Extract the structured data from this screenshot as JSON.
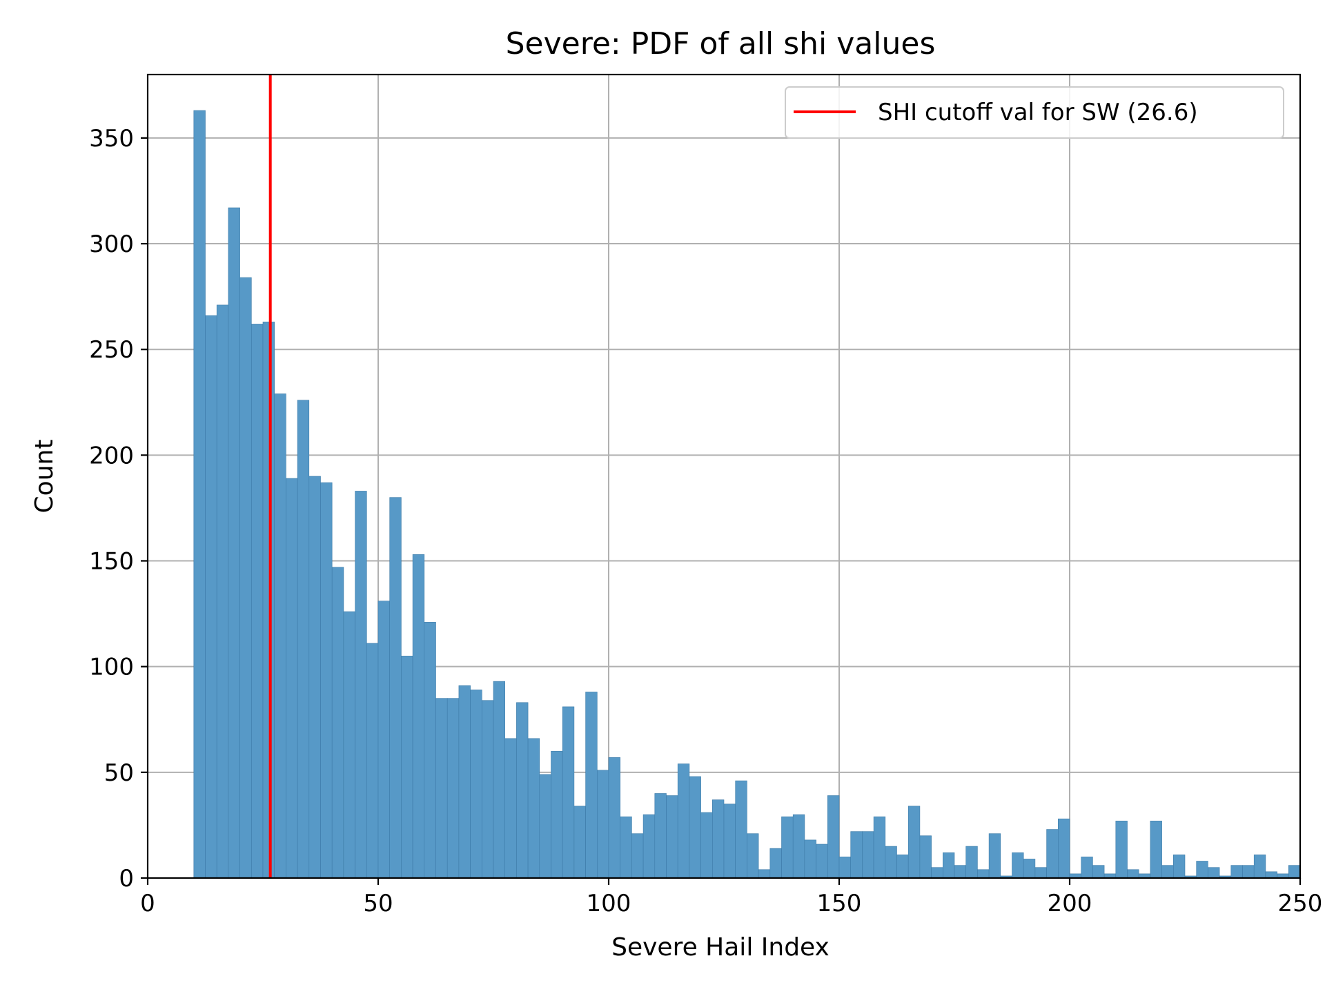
{
  "chart_data": {
    "type": "bar",
    "title": "Severe: PDF of all shi values",
    "xlabel": "Severe Hail Index",
    "ylabel": "Count",
    "xlim": [
      0,
      250
    ],
    "ylim": [
      0,
      380
    ],
    "xticks": [
      0,
      50,
      100,
      150,
      200,
      250
    ],
    "yticks": [
      0,
      50,
      100,
      150,
      200,
      250,
      300,
      350
    ],
    "grid": true,
    "bar_color": "#5799c7",
    "bins_start": 10,
    "bin_width": 2.5,
    "values": [
      363,
      266,
      271,
      317,
      284,
      262,
      263,
      229,
      189,
      226,
      190,
      187,
      147,
      126,
      183,
      111,
      131,
      180,
      105,
      153,
      121,
      85,
      85,
      91,
      89,
      84,
      93,
      66,
      83,
      66,
      49,
      60,
      81,
      34,
      88,
      51,
      57,
      29,
      21,
      30,
      40,
      39,
      54,
      48,
      31,
      37,
      35,
      46,
      21,
      4,
      14,
      29,
      30,
      18,
      16,
      39,
      10,
      22,
      22,
      29,
      15,
      11,
      34,
      20,
      5,
      12,
      6,
      15,
      4,
      21,
      1,
      12,
      9,
      5,
      23,
      28,
      2,
      10,
      6,
      2,
      27,
      4,
      2,
      27,
      6,
      11,
      1,
      8,
      5,
      1,
      6,
      6,
      11,
      3,
      2,
      6
    ],
    "reference_line": {
      "x": 26.6,
      "color": "#ff0000",
      "label": "SHI cutoff val for SW (26.6)"
    },
    "legend_position": "top-right"
  }
}
